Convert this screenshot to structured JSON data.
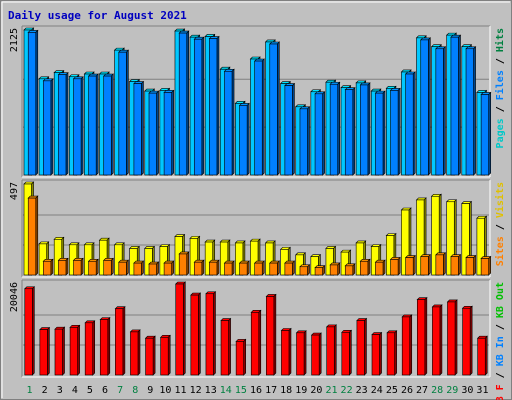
{
  "chart_data": {
    "type": "bar",
    "title": "Daily usage for August 2021",
    "categories": [
      "1",
      "2",
      "3",
      "4",
      "5",
      "6",
      "7",
      "8",
      "9",
      "10",
      "11",
      "12",
      "13",
      "14",
      "15",
      "16",
      "17",
      "18",
      "19",
      "20",
      "21",
      "22",
      "23",
      "24",
      "25",
      "26",
      "27",
      "28",
      "29",
      "30",
      "31"
    ],
    "weekend_days": [
      1,
      7,
      8,
      14,
      15,
      21,
      22,
      28,
      29
    ],
    "panels": [
      {
        "id": "hits",
        "max_label": "2125",
        "ymax": 2125,
        "axis_labels": [
          {
            "text": "Pages",
            "color": "#00c8c8"
          },
          {
            "text": "Files",
            "color": "#0080ff"
          },
          {
            "text": "Hits",
            "color": "#008040"
          }
        ],
        "series": [
          {
            "name": "Hits",
            "color": "#00c8ff",
            "values": [
              2125,
              1410,
              1500,
              1440,
              1480,
              1480,
              1830,
              1370,
              1230,
              1240,
              2110,
              2020,
              2030,
              1550,
              1050,
              1700,
              1950,
              1340,
              1000,
              1220,
              1360,
              1280,
              1350,
              1230,
              1270,
              1510,
              2010,
              1880,
              2050,
              1880,
              1210
            ]
          },
          {
            "name": "Files",
            "color": "#0080ff",
            "values": [
              2090,
              1380,
              1470,
              1410,
              1450,
              1450,
              1800,
              1340,
              1200,
              1210,
              2080,
              1990,
              2000,
              1520,
              1020,
              1670,
              1920,
              1310,
              970,
              1190,
              1330,
              1250,
              1320,
              1200,
              1240,
              1480,
              1980,
              1850,
              2020,
              1850,
              1180
            ]
          },
          {
            "name": "Pages",
            "color": "#00c8c8",
            "values": [
              0,
              0,
              0,
              0,
              0,
              0,
              0,
              0,
              0,
              0,
              0,
              0,
              0,
              0,
              0,
              0,
              0,
              0,
              0,
              0,
              0,
              0,
              0,
              0,
              0,
              0,
              0,
              0,
              0,
              0,
              0
            ]
          }
        ]
      },
      {
        "id": "visits",
        "max_label": "497",
        "ymax": 497,
        "axis_labels": [
          {
            "text": "Sites",
            "color": "#ff8000"
          },
          {
            "text": "Visits",
            "color": "#e0c000"
          }
        ],
        "series": [
          {
            "name": "Visits",
            "color": "#ffff00",
            "values": [
              497,
              170,
              195,
              165,
              165,
              190,
              165,
              145,
              145,
              155,
              210,
              200,
              180,
              180,
              175,
              185,
              175,
              140,
              110,
              100,
              145,
              125,
              175,
              155,
              215,
              355,
              410,
              430,
              400,
              390,
              310
            ]
          },
          {
            "name": "Sites",
            "color": "#ff8000",
            "values": [
              420,
              75,
              80,
              80,
              75,
              80,
              70,
              65,
              60,
              65,
              115,
              70,
              70,
              65,
              65,
              65,
              65,
              65,
              45,
              40,
              55,
              50,
              75,
              70,
              85,
              95,
              100,
              110,
              100,
              95,
              90
            ]
          }
        ]
      },
      {
        "id": "kbytes",
        "max_label": "20046",
        "ymax": 20046,
        "axis_labels": [
          {
            "text": "KB F",
            "color": "#ff0000"
          },
          {
            "text": "KB In",
            "color": "#0080ff"
          },
          {
            "text": "KB Out",
            "color": "#00c000"
          }
        ],
        "series": [
          {
            "name": "KB F",
            "color": "#ff0000",
            "values": [
              19000,
              10000,
              10100,
              10500,
              11500,
              12200,
              14600,
              9500,
              8100,
              8300,
              20046,
              17600,
              17900,
              12000,
              7400,
              13800,
              17300,
              9800,
              9300,
              8800,
              10600,
              9400,
              12000,
              8900,
              9300,
              12800,
              16600,
              15000,
              16100,
              14700,
              8100
            ]
          }
        ]
      }
    ]
  }
}
